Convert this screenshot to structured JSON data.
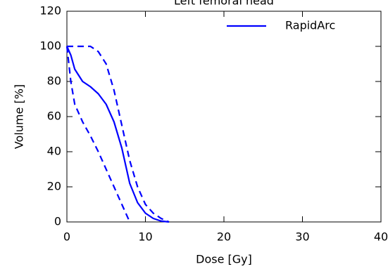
{
  "chart_data": {
    "type": "line",
    "title": "Left femoral head",
    "x_label": "Dose [Gy]",
    "y_label": "Volume [%]",
    "x": [
      0,
      0.5,
      1,
      2,
      3,
      4,
      5,
      6,
      7,
      8,
      9,
      10,
      11,
      12,
      13
    ],
    "series": [
      {
        "name": "RapidArc",
        "color": "#0000ff",
        "dash": false,
        "values": [
          100,
          95,
          87,
          80,
          77,
          73,
          67,
          57,
          42,
          22,
          11,
          5,
          2,
          0.5,
          0
        ]
      },
      {
        "color": "#0000ff",
        "dash": true,
        "values": [
          100,
          100,
          100,
          100,
          100,
          97,
          90,
          75,
          55,
          35,
          20,
          10,
          5,
          2,
          0
        ]
      },
      {
        "color": "#0000ff",
        "dash": true,
        "values": [
          100,
          80,
          67,
          57,
          49,
          40,
          30,
          20,
          10,
          0,
          null,
          null,
          null,
          null,
          null
        ]
      }
    ],
    "xlim": [
      0,
      40
    ],
    "xticks": [
      0,
      10,
      20,
      30,
      40
    ],
    "ylim": [
      0,
      120
    ],
    "yticks": [
      0,
      20,
      40,
      60,
      80,
      100,
      120
    ],
    "legend": "top-right"
  }
}
